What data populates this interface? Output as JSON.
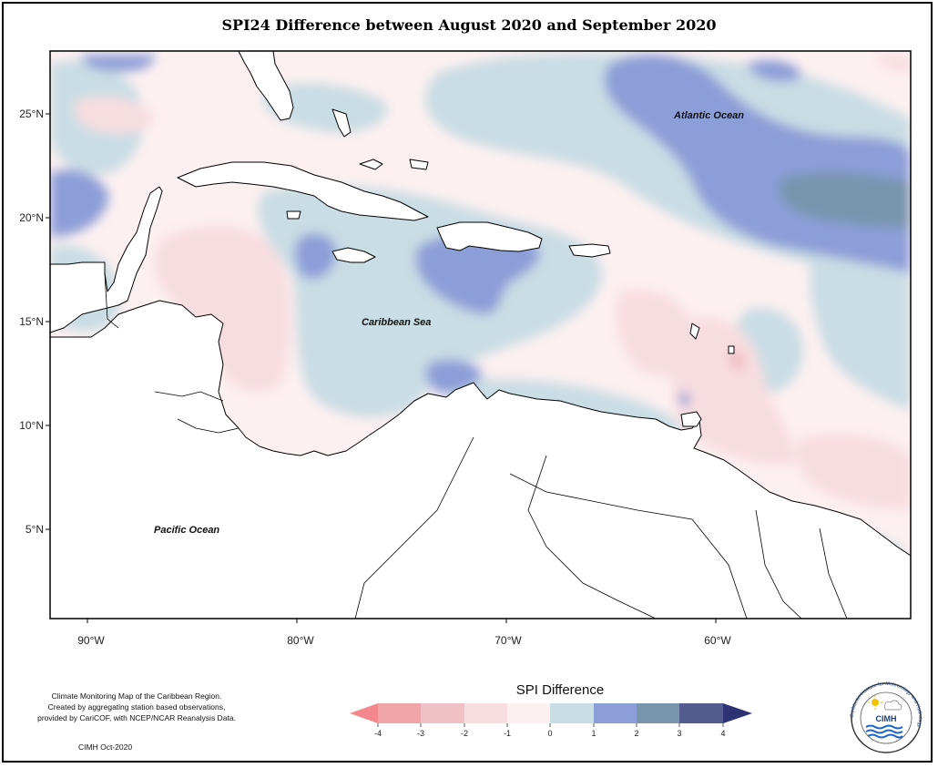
{
  "title": "SPI24 Difference between August 2020 and September 2020",
  "longitude_labels": [
    "90°W",
    "80°W",
    "70°W",
    "60°W"
  ],
  "latitude_labels": [
    "25°N",
    "20°N",
    "15°N",
    "10°N",
    "5°N"
  ],
  "places": {
    "atlantic": "Atlantic Ocean",
    "caribbean": "Caribbean Sea",
    "pacific": "Pacific Ocean"
  },
  "legend": {
    "title": "SPI Difference",
    "tick_labels": [
      "-4",
      "-3",
      "-2",
      "-1",
      "0",
      "1",
      "2",
      "3",
      "4"
    ],
    "colors": {
      "below_-4": "#f4878d",
      "-4_-3": "#f2a5a9",
      "-3_-2": "#efc1c4",
      "-2_-1": "#f8dde0",
      "-1_0": "#fdf0f1",
      "0_1": "#c9dde4",
      "1_2": "#8c9ed8",
      "2_3": "#7895ad",
      "3_4": "#525c8e",
      "above_4": "#2d3272"
    }
  },
  "note_lines": [
    "Climate Monitoring Map of the Caribbean Region.",
    "Created by aggregating station based observations,",
    "provided by CariCOF, with NCEP/NCAR Reanalysis Data."
  ],
  "credit": "CIMH Oct-2020",
  "logo": {
    "name": "CIMH",
    "ring_text": "Caribbean Institute for Meteorology and Hydrology"
  }
}
